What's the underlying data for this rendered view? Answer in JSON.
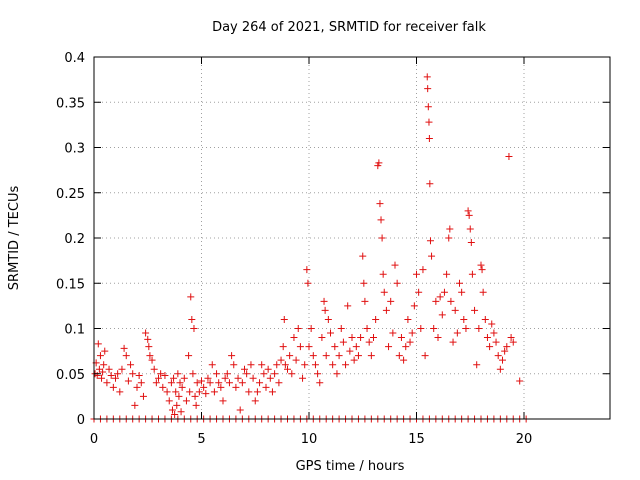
{
  "chart_data": {
    "type": "scatter",
    "title": "Day 264 of 2021, SRMTID for receiver falk",
    "xlabel": "GPS time / hours",
    "ylabel": "SRMTID / TECUs",
    "xlim": [
      0,
      24
    ],
    "ylim": [
      0,
      0.4
    ],
    "xticks": [
      0,
      5,
      10,
      15,
      20
    ],
    "xtick_labels": [
      "0",
      "5",
      "10",
      "15",
      "20"
    ],
    "yticks": [
      0,
      0.05,
      0.1,
      0.15,
      0.2,
      0.25,
      0.3,
      0.35,
      0.4
    ],
    "ytick_labels": [
      "0",
      "0.05",
      "0.1",
      "0.15",
      "0.2",
      "0.25",
      "0.3",
      "0.35",
      "0.4"
    ],
    "grid": true,
    "marker": "+",
    "color": "#e01010",
    "series": [
      {
        "name": "SRMTID",
        "points": [
          [
            0.05,
            0.05
          ],
          [
            0.1,
            0.062
          ],
          [
            0.15,
            0.048
          ],
          [
            0.2,
            0.083
          ],
          [
            0.25,
            0.055
          ],
          [
            0.3,
            0.07
          ],
          [
            0.35,
            0.045
          ],
          [
            0.4,
            0.052
          ],
          [
            0.45,
            0.06
          ],
          [
            0.5,
            0.075
          ],
          [
            0.6,
            0.04
          ],
          [
            0.7,
            0.055
          ],
          [
            0.8,
            0.048
          ],
          [
            0.9,
            0.035
          ],
          [
            1.0,
            0.045
          ],
          [
            1.1,
            0.05
          ],
          [
            1.2,
            0.03
          ],
          [
            1.3,
            0.055
          ],
          [
            1.4,
            0.078
          ],
          [
            1.5,
            0.07
          ],
          [
            1.6,
            0.042
          ],
          [
            1.7,
            0.06
          ],
          [
            1.8,
            0.05
          ],
          [
            1.9,
            0.015
          ],
          [
            2.0,
            0.035
          ],
          [
            2.1,
            0.048
          ],
          [
            2.2,
            0.04
          ],
          [
            2.3,
            0.025
          ],
          [
            2.4,
            0.095
          ],
          [
            2.5,
            0.088
          ],
          [
            2.55,
            0.08
          ],
          [
            2.6,
            0.07
          ],
          [
            2.7,
            0.065
          ],
          [
            2.8,
            0.055
          ],
          [
            2.9,
            0.04
          ],
          [
            3.0,
            0.045
          ],
          [
            3.1,
            0.05
          ],
          [
            3.2,
            0.035
          ],
          [
            3.3,
            0.048
          ],
          [
            3.4,
            0.03
          ],
          [
            3.5,
            0.02
          ],
          [
            3.6,
            0.04
          ],
          [
            3.65,
            0.01
          ],
          [
            3.7,
            0.045
          ],
          [
            3.75,
            0.005
          ],
          [
            3.8,
            0.03
          ],
          [
            3.85,
            0.015
          ],
          [
            3.9,
            0.05
          ],
          [
            3.95,
            0.025
          ],
          [
            4.0,
            0.04
          ],
          [
            4.05,
            0.008
          ],
          [
            4.1,
            0.035
          ],
          [
            4.2,
            0.045
          ],
          [
            4.3,
            0.02
          ],
          [
            4.4,
            0.07
          ],
          [
            4.45,
            0.03
          ],
          [
            4.5,
            0.135
          ],
          [
            4.55,
            0.11
          ],
          [
            4.6,
            0.05
          ],
          [
            4.65,
            0.1
          ],
          [
            4.7,
            0.025
          ],
          [
            4.75,
            0.015
          ],
          [
            4.8,
            0.04
          ],
          [
            4.9,
            0.03
          ],
          [
            5.0,
            0.042
          ],
          [
            5.1,
            0.035
          ],
          [
            5.2,
            0.028
          ],
          [
            5.3,
            0.045
          ],
          [
            5.4,
            0.04
          ],
          [
            5.5,
            0.06
          ],
          [
            5.6,
            0.03
          ],
          [
            5.7,
            0.05
          ],
          [
            5.8,
            0.04
          ],
          [
            5.9,
            0.035
          ],
          [
            6.0,
            0.02
          ],
          [
            6.1,
            0.045
          ],
          [
            6.2,
            0.05
          ],
          [
            6.3,
            0.04
          ],
          [
            6.4,
            0.07
          ],
          [
            6.5,
            0.06
          ],
          [
            6.6,
            0.035
          ],
          [
            6.7,
            0.045
          ],
          [
            6.8,
            0.01
          ],
          [
            6.9,
            0.04
          ],
          [
            7.0,
            0.055
          ],
          [
            7.1,
            0.05
          ],
          [
            7.2,
            0.03
          ],
          [
            7.3,
            0.06
          ],
          [
            7.4,
            0.045
          ],
          [
            7.5,
            0.02
          ],
          [
            7.6,
            0.03
          ],
          [
            7.7,
            0.04
          ],
          [
            7.8,
            0.06
          ],
          [
            7.9,
            0.05
          ],
          [
            8.0,
            0.035
          ],
          [
            8.1,
            0.055
          ],
          [
            8.2,
            0.045
          ],
          [
            8.3,
            0.03
          ],
          [
            8.4,
            0.05
          ],
          [
            8.5,
            0.06
          ],
          [
            8.6,
            0.04
          ],
          [
            8.7,
            0.065
          ],
          [
            8.8,
            0.08
          ],
          [
            8.85,
            0.11
          ],
          [
            8.9,
            0.06
          ],
          [
            9.0,
            0.055
          ],
          [
            9.1,
            0.07
          ],
          [
            9.2,
            0.05
          ],
          [
            9.3,
            0.09
          ],
          [
            9.4,
            0.065
          ],
          [
            9.5,
            0.1
          ],
          [
            9.6,
            0.08
          ],
          [
            9.7,
            0.045
          ],
          [
            9.8,
            0.06
          ],
          [
            9.9,
            0.165
          ],
          [
            9.95,
            0.15
          ],
          [
            10.0,
            0.08
          ],
          [
            10.1,
            0.1
          ],
          [
            10.2,
            0.07
          ],
          [
            10.3,
            0.06
          ],
          [
            10.4,
            0.05
          ],
          [
            10.5,
            0.04
          ],
          [
            10.6,
            0.09
          ],
          [
            10.7,
            0.13
          ],
          [
            10.75,
            0.12
          ],
          [
            10.8,
            0.07
          ],
          [
            10.9,
            0.11
          ],
          [
            11.0,
            0.095
          ],
          [
            11.1,
            0.06
          ],
          [
            11.2,
            0.08
          ],
          [
            11.3,
            0.05
          ],
          [
            11.4,
            0.07
          ],
          [
            11.5,
            0.1
          ],
          [
            11.6,
            0.085
          ],
          [
            11.7,
            0.06
          ],
          [
            11.8,
            0.125
          ],
          [
            11.9,
            0.075
          ],
          [
            12.0,
            0.09
          ],
          [
            12.1,
            0.065
          ],
          [
            12.2,
            0.08
          ],
          [
            12.3,
            0.07
          ],
          [
            12.4,
            0.09
          ],
          [
            12.5,
            0.18
          ],
          [
            12.55,
            0.15
          ],
          [
            12.6,
            0.13
          ],
          [
            12.7,
            0.1
          ],
          [
            12.8,
            0.085
          ],
          [
            12.9,
            0.07
          ],
          [
            13.0,
            0.09
          ],
          [
            13.1,
            0.11
          ],
          [
            13.2,
            0.28
          ],
          [
            13.25,
            0.283
          ],
          [
            13.3,
            0.238
          ],
          [
            13.35,
            0.22
          ],
          [
            13.4,
            0.2
          ],
          [
            13.45,
            0.16
          ],
          [
            13.5,
            0.14
          ],
          [
            13.6,
            0.12
          ],
          [
            13.7,
            0.08
          ],
          [
            13.8,
            0.13
          ],
          [
            13.9,
            0.095
          ],
          [
            14.0,
            0.17
          ],
          [
            14.1,
            0.15
          ],
          [
            14.2,
            0.07
          ],
          [
            14.3,
            0.09
          ],
          [
            14.4,
            0.065
          ],
          [
            14.5,
            0.08
          ],
          [
            14.6,
            0.11
          ],
          [
            14.7,
            0.085
          ],
          [
            14.8,
            0.095
          ],
          [
            14.9,
            0.125
          ],
          [
            15.0,
            0.16
          ],
          [
            15.1,
            0.14
          ],
          [
            15.2,
            0.1
          ],
          [
            15.3,
            0.165
          ],
          [
            15.4,
            0.07
          ],
          [
            15.5,
            0.378
          ],
          [
            15.52,
            0.365
          ],
          [
            15.55,
            0.345
          ],
          [
            15.58,
            0.328
          ],
          [
            15.6,
            0.31
          ],
          [
            15.62,
            0.26
          ],
          [
            15.65,
            0.197
          ],
          [
            15.7,
            0.18
          ],
          [
            15.8,
            0.1
          ],
          [
            15.9,
            0.13
          ],
          [
            16.0,
            0.09
          ],
          [
            16.1,
            0.135
          ],
          [
            16.2,
            0.115
          ],
          [
            16.3,
            0.14
          ],
          [
            16.4,
            0.16
          ],
          [
            16.5,
            0.2
          ],
          [
            16.55,
            0.21
          ],
          [
            16.6,
            0.13
          ],
          [
            16.7,
            0.085
          ],
          [
            16.8,
            0.12
          ],
          [
            16.9,
            0.095
          ],
          [
            17.0,
            0.15
          ],
          [
            17.1,
            0.14
          ],
          [
            17.2,
            0.11
          ],
          [
            17.3,
            0.1
          ],
          [
            17.4,
            0.23
          ],
          [
            17.45,
            0.225
          ],
          [
            17.5,
            0.21
          ],
          [
            17.55,
            0.195
          ],
          [
            17.6,
            0.16
          ],
          [
            17.7,
            0.12
          ],
          [
            17.8,
            0.06
          ],
          [
            17.9,
            0.1
          ],
          [
            18.0,
            0.17
          ],
          [
            18.05,
            0.165
          ],
          [
            18.1,
            0.14
          ],
          [
            18.2,
            0.11
          ],
          [
            18.3,
            0.09
          ],
          [
            18.4,
            0.08
          ],
          [
            18.5,
            0.105
          ],
          [
            18.6,
            0.095
          ],
          [
            18.7,
            0.085
          ],
          [
            18.8,
            0.07
          ],
          [
            18.9,
            0.055
          ],
          [
            19.0,
            0.065
          ],
          [
            19.1,
            0.075
          ],
          [
            19.2,
            0.08
          ],
          [
            19.3,
            0.29
          ],
          [
            19.4,
            0.09
          ],
          [
            19.5,
            0.085
          ],
          [
            19.8,
            0.042
          ],
          [
            0.0,
            0
          ],
          [
            0.3,
            0
          ],
          [
            0.6,
            0
          ],
          [
            0.9,
            0
          ],
          [
            1.2,
            0
          ],
          [
            1.5,
            0
          ],
          [
            1.8,
            0
          ],
          [
            2.1,
            0
          ],
          [
            2.4,
            0
          ],
          [
            2.7,
            0
          ],
          [
            3.0,
            0
          ],
          [
            3.3,
            0
          ],
          [
            3.6,
            0
          ],
          [
            3.9,
            0
          ],
          [
            4.2,
            0
          ],
          [
            4.5,
            0
          ],
          [
            4.8,
            0
          ],
          [
            5.1,
            0
          ],
          [
            5.4,
            0
          ],
          [
            5.7,
            0
          ],
          [
            6.0,
            0
          ],
          [
            6.3,
            0
          ],
          [
            6.6,
            0
          ],
          [
            6.9,
            0
          ],
          [
            7.2,
            0
          ],
          [
            7.5,
            0
          ],
          [
            7.8,
            0
          ],
          [
            8.1,
            0
          ],
          [
            8.4,
            0
          ],
          [
            8.7,
            0
          ],
          [
            9.0,
            0
          ],
          [
            9.3,
            0
          ],
          [
            9.6,
            0
          ],
          [
            9.9,
            0
          ],
          [
            10.2,
            0
          ],
          [
            10.5,
            0
          ],
          [
            10.8,
            0
          ],
          [
            11.1,
            0
          ],
          [
            11.4,
            0
          ],
          [
            11.7,
            0
          ],
          [
            12.0,
            0
          ],
          [
            12.3,
            0
          ],
          [
            12.6,
            0
          ],
          [
            12.9,
            0
          ],
          [
            13.2,
            0
          ],
          [
            13.5,
            0
          ],
          [
            13.8,
            0
          ],
          [
            14.1,
            0
          ],
          [
            14.4,
            0
          ],
          [
            14.7,
            0
          ],
          [
            15.0,
            0
          ],
          [
            15.3,
            0
          ],
          [
            15.6,
            0
          ],
          [
            15.9,
            0
          ],
          [
            16.2,
            0
          ],
          [
            16.5,
            0
          ],
          [
            16.8,
            0
          ],
          [
            17.1,
            0
          ],
          [
            17.4,
            0
          ],
          [
            17.7,
            0
          ],
          [
            18.0,
            0
          ],
          [
            18.3,
            0
          ],
          [
            18.6,
            0
          ],
          [
            18.9,
            0
          ],
          [
            19.2,
            0
          ],
          [
            19.5,
            0
          ],
          [
            19.8,
            0
          ],
          [
            20.1,
            0
          ]
        ]
      }
    ]
  }
}
